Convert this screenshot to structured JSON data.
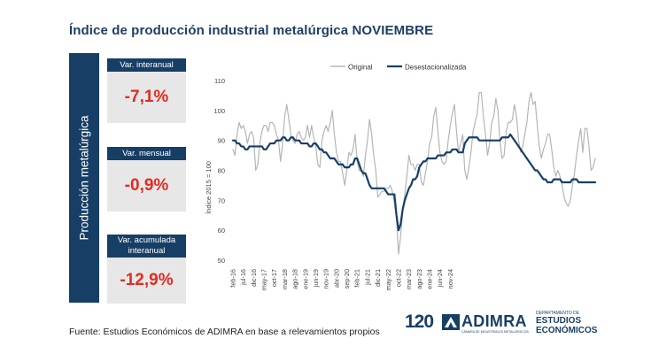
{
  "header": {
    "title": "Índice de producción industrial metalúrgica NOVIEMBRE"
  },
  "sidebar": {
    "label": "Producción metalúrgica"
  },
  "cards": [
    {
      "label": "Var. interanual",
      "value": "-7,1%"
    },
    {
      "label": "Var. mensual",
      "value": "-0,9%"
    },
    {
      "label": "Var. acumulada interanual",
      "value": "-12,9%"
    }
  ],
  "footer": {
    "source": "Fuente: Estudios Económicos de ADIMRA en base a relevamientos propios"
  },
  "logos": {
    "anniv": "120",
    "brand": "ADIMRA",
    "brand_sub": "CÁMARA DE INDUSTRIALES METALÚRGICOS",
    "dept_top": "DEPARTAMENTO DE",
    "dept_main1": "ESTUDIOS",
    "dept_main2": "ECONÓMICOS"
  },
  "colors": {
    "navy": "#173f66",
    "accent_red": "#e32b22",
    "original_series": "#b5b5b5"
  },
  "chart_data": {
    "type": "line",
    "ylabel": "Índice 2015 = 100",
    "xlabel": "",
    "ylim": [
      50,
      110
    ],
    "y_ticks": [
      50,
      60,
      70,
      80,
      90,
      100,
      110
    ],
    "x_tick_labels": [
      "feb-16",
      "jul-16",
      "dic-16",
      "may-17",
      "oct-17",
      "mar-18",
      "ago-18",
      "ene-19",
      "jun-19",
      "nov-19",
      "abr-20",
      "sep-20",
      "feb-21",
      "jul-21",
      "dic-21",
      "may-22",
      "oct-22",
      "mar-23",
      "ago-23",
      "ene-24",
      "jun-24",
      "nov-24"
    ],
    "legend_position": "top",
    "grid": false,
    "x_start": "feb-16",
    "x_end": "nov-24",
    "series": [
      {
        "name": "Original",
        "color": "#b5b5b5",
        "values": [
          87,
          85,
          92,
          96,
          94,
          95,
          93,
          89,
          92,
          93,
          91,
          80,
          82,
          89,
          93,
          95,
          95,
          93,
          96,
          96,
          95,
          92,
          90,
          83,
          89,
          98,
          102,
          97,
          92,
          90,
          89,
          92,
          93,
          91,
          90,
          91,
          95,
          91,
          95,
          91,
          88,
          82,
          81,
          90,
          93,
          95,
          93,
          96,
          100,
          92,
          86,
          83,
          83,
          79,
          75,
          80,
          86,
          85,
          87,
          92,
          83,
          80,
          80,
          78,
          85,
          90,
          97,
          92,
          85,
          80,
          71,
          72,
          73,
          73,
          74,
          74,
          75,
          73,
          69,
          64,
          52,
          58,
          66,
          72,
          78,
          85,
          82,
          82,
          80,
          82,
          82,
          76,
          75,
          79,
          83,
          89,
          91,
          98,
          101,
          93,
          86,
          83,
          82,
          83,
          90,
          95,
          99,
          102,
          93,
          86,
          89,
          92,
          80,
          77,
          81,
          86,
          93,
          96,
          99,
          106,
          106,
          98,
          92,
          85,
          89,
          96,
          98,
          104,
          100,
          90,
          84,
          85,
          93,
          96,
          96,
          97,
          102,
          98,
          90,
          86,
          88,
          92,
          96,
          103,
          106,
          102,
          103,
          95,
          88,
          84,
          87,
          89,
          92,
          92,
          87,
          81,
          78,
          80,
          78,
          75,
          71,
          69,
          68,
          70,
          75,
          79,
          85,
          90,
          94,
          86,
          94,
          94,
          88,
          80,
          81,
          84
        ]
      },
      {
        "name": "Desestacionalizada",
        "color": "#173f66",
        "values": [
          90,
          90,
          89,
          89,
          88,
          88,
          87,
          87,
          88,
          88,
          88,
          88,
          88,
          88,
          88,
          87,
          87,
          88,
          89,
          89,
          89,
          90,
          90,
          90,
          91,
          91,
          90,
          90,
          91,
          91,
          90,
          90,
          90,
          89,
          89,
          89,
          89,
          88,
          88,
          89,
          89,
          88,
          87,
          87,
          86,
          86,
          85,
          84,
          84,
          84,
          83,
          82,
          82,
          82,
          81,
          81,
          81,
          82,
          82,
          84,
          84,
          82,
          80,
          79,
          79,
          77,
          75,
          74,
          74,
          74,
          74,
          74,
          74,
          74,
          73,
          72,
          72,
          72,
          72,
          65,
          60,
          62,
          67,
          70,
          72,
          74,
          75,
          77,
          77,
          78,
          81,
          82,
          83,
          83,
          84,
          84,
          84,
          84,
          84,
          85,
          85,
          85,
          85,
          86,
          86,
          86,
          87,
          87,
          87,
          86,
          86,
          86,
          89,
          90,
          91,
          91,
          91,
          91,
          91,
          90,
          90,
          90,
          90,
          90,
          90,
          90,
          90,
          90,
          90,
          90,
          91,
          91,
          91,
          91,
          92,
          91,
          90,
          89,
          88,
          87,
          86,
          85,
          84,
          83,
          82,
          81,
          80,
          80,
          79,
          78,
          77,
          77,
          76,
          76,
          76,
          77,
          77,
          77,
          77,
          76,
          76,
          76,
          76,
          76,
          77,
          77,
          77,
          76,
          76,
          76,
          76,
          76,
          76,
          76,
          76,
          76
        ]
      }
    ]
  }
}
